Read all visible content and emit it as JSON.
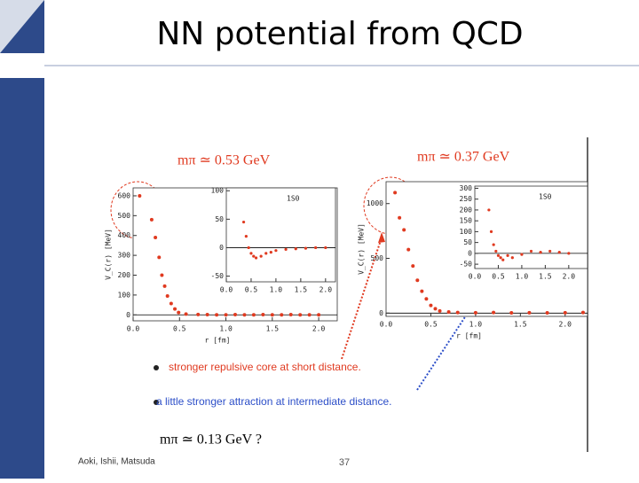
{
  "title": "NN potential from QCD",
  "labels": {
    "left_mass": "mπ ≃ 0.53 GeV",
    "right_mass": "mπ ≃ 0.37 GeV",
    "bottom_mass": "mπ ≃ 0.13 GeV ?"
  },
  "bullets": [
    "stronger repulsive core at short distance.",
    "a little stronger attraction at intermediate distance."
  ],
  "footer": {
    "authors": "Aoki, Ishii, Matsuda",
    "page": "37"
  },
  "chart_data": [
    {
      "type": "scatter",
      "color": "#e03a20",
      "xlabel": "r [fm]",
      "ylabel": "V_C(r) [MeV]",
      "x": [
        0.07,
        0.2,
        0.24,
        0.28,
        0.31,
        0.34,
        0.37,
        0.41,
        0.45,
        0.49,
        0.57,
        0.7,
        0.8,
        0.9,
        1.0,
        1.1,
        1.2,
        1.3,
        1.4,
        1.5,
        1.6,
        1.7,
        1.8,
        1.9,
        2.0
      ],
      "values": [
        600,
        480,
        390,
        290,
        200,
        145,
        95,
        57,
        30,
        12,
        4,
        2,
        1,
        0,
        0,
        1,
        0,
        0,
        1,
        0,
        0,
        1,
        0,
        0,
        0
      ],
      "xlim": [
        0,
        2.2
      ],
      "ylim": [
        -30,
        640
      ],
      "xticks": [
        {
          "value": 0,
          "label": "0.0"
        },
        {
          "value": 0.5,
          "label": "0.5"
        },
        {
          "value": 1,
          "label": "1.0"
        },
        {
          "value": 1.5,
          "label": "1.5"
        },
        {
          "value": 2,
          "label": "2.0"
        }
      ],
      "yticks": [
        0,
        100,
        200,
        300,
        400,
        500,
        600
      ]
    },
    {
      "type": "scatter",
      "color": "#e03a20",
      "annotation": "1S0",
      "x": [
        0.35,
        0.4,
        0.45,
        0.5,
        0.55,
        0.6,
        0.7,
        0.8,
        0.9,
        1.0,
        1.2,
        1.4,
        1.6,
        1.8,
        2.0
      ],
      "values": [
        45,
        20,
        0,
        -10,
        -15,
        -18,
        -15,
        -10,
        -8,
        -5,
        -3,
        -2,
        -1,
        0,
        0
      ],
      "xlim": [
        0,
        2.2
      ],
      "ylim": [
        -60,
        105
      ],
      "xticks": [
        {
          "value": 0,
          "label": "0.0"
        },
        {
          "value": 0.5,
          "label": "0.5"
        },
        {
          "value": 1,
          "label": "1.0"
        },
        {
          "value": 1.5,
          "label": "1.5"
        },
        {
          "value": 2,
          "label": "2.0"
        }
      ],
      "yticks": [
        -50,
        0,
        50,
        100
      ]
    },
    {
      "type": "scatter",
      "color": "#e03a20",
      "xlabel": "r [fm]",
      "ylabel": "V_C(r) [MeV]",
      "x": [
        0.1,
        0.15,
        0.2,
        0.25,
        0.3,
        0.35,
        0.4,
        0.45,
        0.5,
        0.55,
        0.6,
        0.7,
        0.8,
        1.0,
        1.2,
        1.4,
        1.6,
        1.8,
        2.0,
        2.2
      ],
      "values": [
        1100,
        870,
        760,
        580,
        430,
        300,
        200,
        130,
        70,
        40,
        20,
        10,
        5,
        3,
        5,
        2,
        3,
        2,
        3,
        5
      ],
      "xlim": [
        0,
        2.25
      ],
      "ylim": [
        -30,
        1200
      ],
      "xticks": [
        {
          "value": 0,
          "label": "0.0"
        },
        {
          "value": 0.5,
          "label": "0.5"
        },
        {
          "value": 1,
          "label": "1.0"
        },
        {
          "value": 1.5,
          "label": "1.5"
        },
        {
          "value": 2,
          "label": "2.0"
        }
      ],
      "yticks": [
        0,
        500,
        1000
      ]
    },
    {
      "type": "scatter",
      "color": "#e03a20",
      "annotation": "1S0",
      "x": [
        0.3,
        0.35,
        0.4,
        0.45,
        0.5,
        0.55,
        0.6,
        0.7,
        0.8,
        1.0,
        1.2,
        1.4,
        1.6,
        1.8,
        2.0
      ],
      "values": [
        200,
        100,
        40,
        10,
        -10,
        -20,
        -30,
        -10,
        -20,
        -5,
        10,
        5,
        10,
        5,
        0
      ],
      "xlim": [
        0,
        2.4
      ],
      "ylim": [
        -70,
        310
      ],
      "xticks": [
        {
          "value": 0,
          "label": "0.0"
        },
        {
          "value": 0.5,
          "label": "0.5"
        },
        {
          "value": 1,
          "label": "1.0"
        },
        {
          "value": 1.5,
          "label": "1.5"
        },
        {
          "value": 2,
          "label": "2.0"
        }
      ],
      "yticks": [
        -50,
        0,
        50,
        100,
        150,
        200,
        250,
        300
      ]
    }
  ]
}
